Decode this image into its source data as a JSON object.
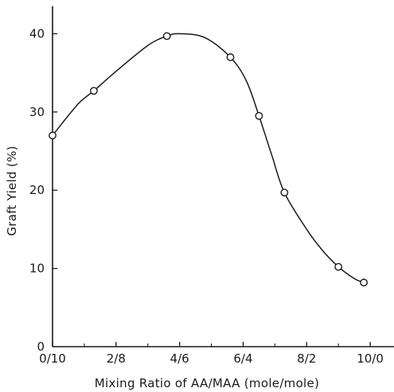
{
  "chart_data": {
    "type": "line",
    "xlabel": "Mixing Ratio of AA/MAA (mole/mole)",
    "ylabel": "Graft Yield (%)",
    "x_ticks": [
      {
        "value": 0,
        "label": "0/10"
      },
      {
        "value": 2,
        "label": "2/8"
      },
      {
        "value": 4,
        "label": "4/6"
      },
      {
        "value": 6,
        "label": "6/4"
      },
      {
        "value": 8,
        "label": "8/2"
      },
      {
        "value": 10,
        "label": "10/0"
      }
    ],
    "y_ticks": [
      {
        "value": 0,
        "label": "0"
      },
      {
        "value": 10,
        "label": "10"
      },
      {
        "value": 20,
        "label": "20"
      },
      {
        "value": 30,
        "label": "30"
      },
      {
        "value": 40,
        "label": "40"
      }
    ],
    "xlim": [
      0,
      10.75
    ],
    "ylim": [
      0,
      43.5
    ],
    "grid": false,
    "series": [
      {
        "marker": "open-circle",
        "points": [
          {
            "x": 0.0,
            "y": 27.0
          },
          {
            "x": 1.3,
            "y": 32.7
          },
          {
            "x": 3.6,
            "y": 39.7
          },
          {
            "x": 5.6,
            "y": 37.0
          },
          {
            "x": 6.5,
            "y": 29.5
          },
          {
            "x": 7.3,
            "y": 19.7
          },
          {
            "x": 9.0,
            "y": 10.2
          },
          {
            "x": 9.8,
            "y": 8.2
          }
        ],
        "curve": [
          {
            "x": 0.0,
            "y": 27.0
          },
          {
            "x": 0.8,
            "y": 31.0
          },
          {
            "x": 1.3,
            "y": 32.7
          },
          {
            "x": 2.0,
            "y": 35.2
          },
          {
            "x": 3.0,
            "y": 38.5
          },
          {
            "x": 3.6,
            "y": 39.7
          },
          {
            "x": 4.0,
            "y": 40.0
          },
          {
            "x": 4.8,
            "y": 39.5
          },
          {
            "x": 5.6,
            "y": 37.0
          },
          {
            "x": 6.1,
            "y": 34.0
          },
          {
            "x": 6.5,
            "y": 29.5
          },
          {
            "x": 6.9,
            "y": 24.5
          },
          {
            "x": 7.3,
            "y": 19.7
          },
          {
            "x": 8.0,
            "y": 15.0
          },
          {
            "x": 8.5,
            "y": 12.3
          },
          {
            "x": 9.0,
            "y": 10.2
          },
          {
            "x": 9.5,
            "y": 8.7
          },
          {
            "x": 9.8,
            "y": 8.2
          }
        ]
      }
    ]
  }
}
